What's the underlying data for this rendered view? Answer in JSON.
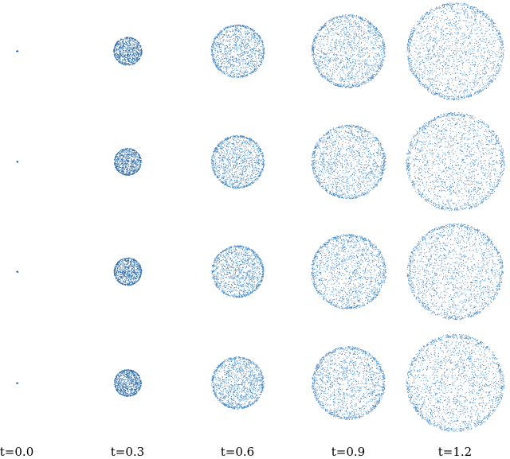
{
  "labels": [
    "t=0.0",
    "t=0.3",
    "t=0.6",
    "t=0.9",
    "t=1.2"
  ]
}
